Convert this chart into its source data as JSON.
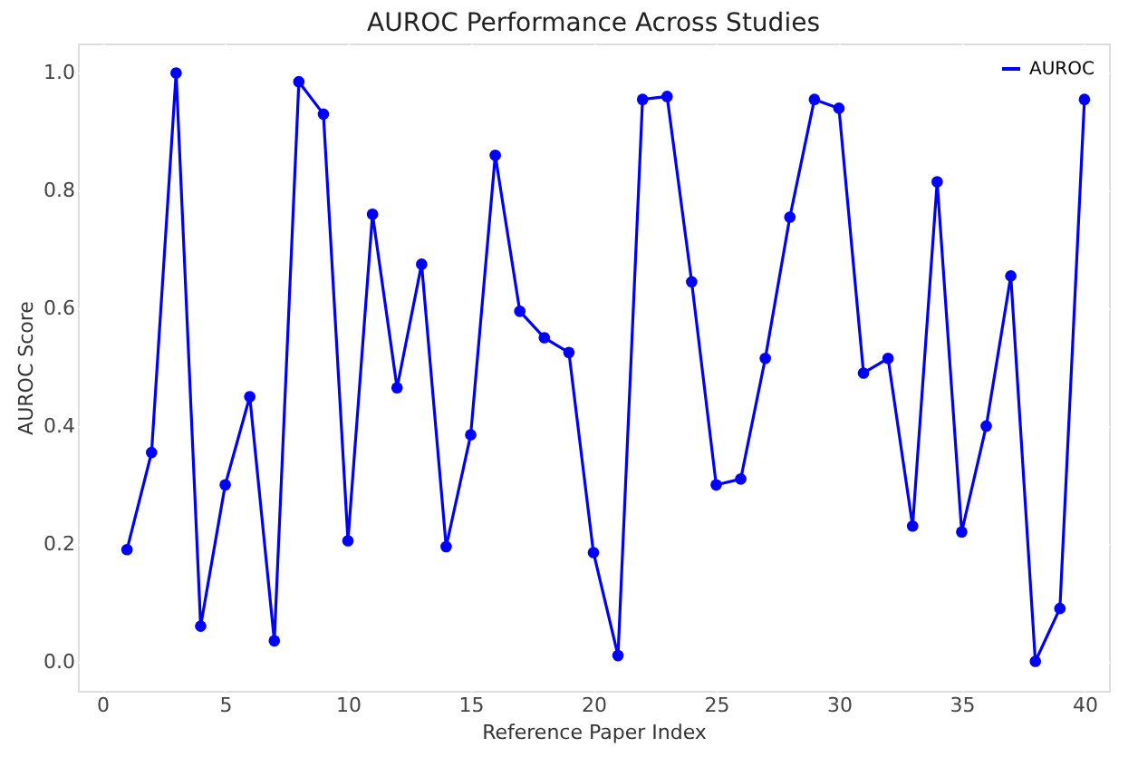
{
  "chart_data": {
    "type": "line",
    "title": "AUROC Performance Across Studies",
    "xlabel": "Reference Paper Index",
    "ylabel": "AUROC Score",
    "x": [
      1,
      2,
      3,
      4,
      5,
      6,
      7,
      8,
      9,
      10,
      11,
      12,
      13,
      14,
      15,
      16,
      17,
      18,
      19,
      20,
      21,
      22,
      23,
      24,
      25,
      26,
      27,
      28,
      29,
      30,
      31,
      32,
      33,
      34,
      35,
      36,
      37,
      38,
      39,
      40
    ],
    "series": [
      {
        "name": "AUROC",
        "color": "#0000ff",
        "values": [
          0.19,
          0.355,
          1.0,
          0.06,
          0.3,
          0.45,
          0.035,
          0.985,
          0.93,
          0.205,
          0.76,
          0.465,
          0.675,
          0.195,
          0.385,
          0.86,
          0.595,
          0.55,
          0.525,
          0.185,
          0.01,
          0.955,
          0.96,
          0.645,
          0.3,
          0.31,
          0.515,
          0.755,
          0.955,
          0.94,
          0.49,
          0.515,
          0.23,
          0.815,
          0.22,
          0.4,
          0.655,
          0.0,
          0.09,
          0.955
        ]
      }
    ],
    "xlim": [
      -1,
      41
    ],
    "xticks": [
      0,
      5,
      10,
      15,
      20,
      25,
      30,
      35,
      40
    ],
    "ylim": [
      -0.05,
      1.05
    ],
    "yticks": [
      {
        "value": 0,
        "label": "0.0"
      },
      {
        "value": 0.2,
        "label": "0.2"
      },
      {
        "value": 0.4,
        "label": "0.4"
      },
      {
        "value": 0.6,
        "label": "0.6"
      },
      {
        "value": 0.8,
        "label": "0.8"
      },
      {
        "value": 1,
        "label": "1.0"
      }
    ],
    "grid": true,
    "legend": "top right",
    "marker": "circle",
    "line_style": "solid"
  }
}
